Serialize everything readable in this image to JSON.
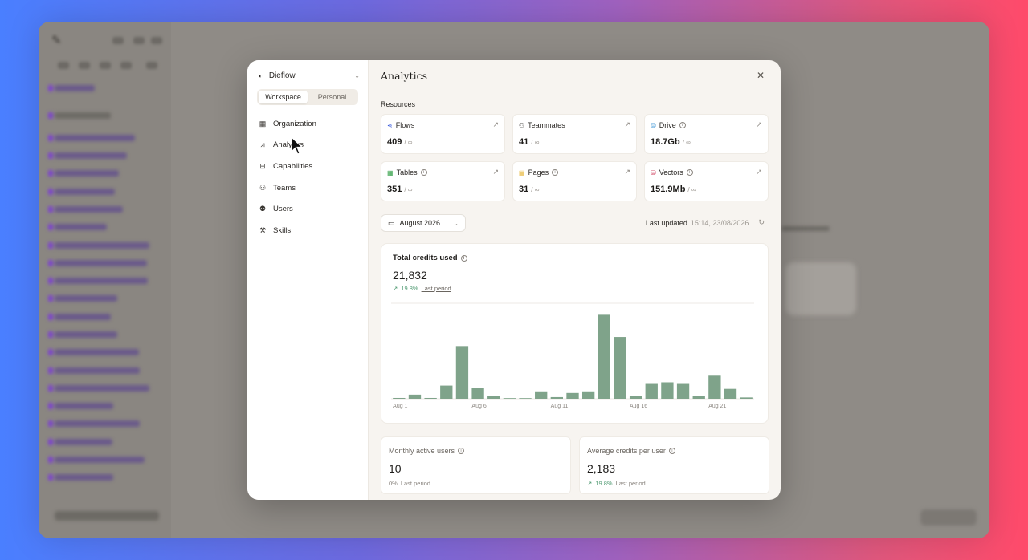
{
  "workspace": {
    "name": "Dieflow"
  },
  "toggle": {
    "workspace": "Workspace",
    "personal": "Personal",
    "active": "Workspace"
  },
  "nav": [
    {
      "label": "Organization",
      "icon": "building-icon"
    },
    {
      "label": "Analytics",
      "icon": "chart-icon"
    },
    {
      "label": "Capabilities",
      "icon": "toolbox-icon"
    },
    {
      "label": "Teams",
      "icon": "team-icon"
    },
    {
      "label": "Users",
      "icon": "users-icon"
    },
    {
      "label": "Skills",
      "icon": "skills-icon"
    }
  ],
  "header": {
    "title": "Analytics"
  },
  "resources": {
    "label": "Resources",
    "items": [
      {
        "name": "Flows",
        "value": "409",
        "limit": "/ ∞",
        "icon": "flows-icon",
        "color": "#3b5bdb"
      },
      {
        "name": "Teammates",
        "value": "41",
        "limit": "/ ∞",
        "icon": "teammates-icon",
        "color": "#3a3733"
      },
      {
        "name": "Drive",
        "value": "18.7Gb",
        "limit": "/ ∞",
        "icon": "drive-icon",
        "color": "#2b8bd1"
      },
      {
        "name": "Tables",
        "value": "351",
        "limit": "/ ∞",
        "icon": "tables-icon",
        "color": "#2f9e44"
      },
      {
        "name": "Pages",
        "value": "31",
        "limit": "/ ∞",
        "icon": "pages-icon",
        "color": "#e0a100"
      },
      {
        "name": "Vectors",
        "value": "151.9Mb",
        "limit": "/ ∞",
        "icon": "vectors-icon",
        "color": "#c92a4a"
      }
    ]
  },
  "filter": {
    "month": "August 2026"
  },
  "updated": {
    "label": "Last updated",
    "timestamp": "15:14, 23/08/2026"
  },
  "credits": {
    "title": "Total credits used",
    "value": "21,832",
    "change": "19.8%",
    "period": "Last period"
  },
  "stats": [
    {
      "label": "Monthly active users",
      "value": "10",
      "change": "0%",
      "period": "Last period",
      "trend": "flat"
    },
    {
      "label": "Average credits per user",
      "value": "2,183",
      "change": "19.8%",
      "period": "Last period",
      "trend": "up"
    }
  ],
  "chart_data": {
    "type": "bar",
    "categories": [
      "Aug 1",
      "Aug 2",
      "Aug 3",
      "Aug 4",
      "Aug 5",
      "Aug 6",
      "Aug 7",
      "Aug 8",
      "Aug 9",
      "Aug 10",
      "Aug 11",
      "Aug 12",
      "Aug 13",
      "Aug 14",
      "Aug 15",
      "Aug 16",
      "Aug 17",
      "Aug 18",
      "Aug 19",
      "Aug 20",
      "Aug 21",
      "Aug 22",
      "Aug 23"
    ],
    "tick_labels": [
      "Aug 1",
      "Aug 6",
      "Aug 11",
      "Aug 16",
      "Aug 21"
    ],
    "values": [
      0.5,
      2.5,
      0.5,
      8,
      32,
      6.5,
      1.5,
      0.4,
      0.4,
      4.5,
      1,
      3.5,
      4.5,
      51,
      37.5,
      1.5,
      9,
      10,
      9,
      1.5,
      14,
      6,
      0.8
    ],
    "ylim": [
      0,
      58
    ],
    "color": "#7fa38a",
    "grid": true
  }
}
